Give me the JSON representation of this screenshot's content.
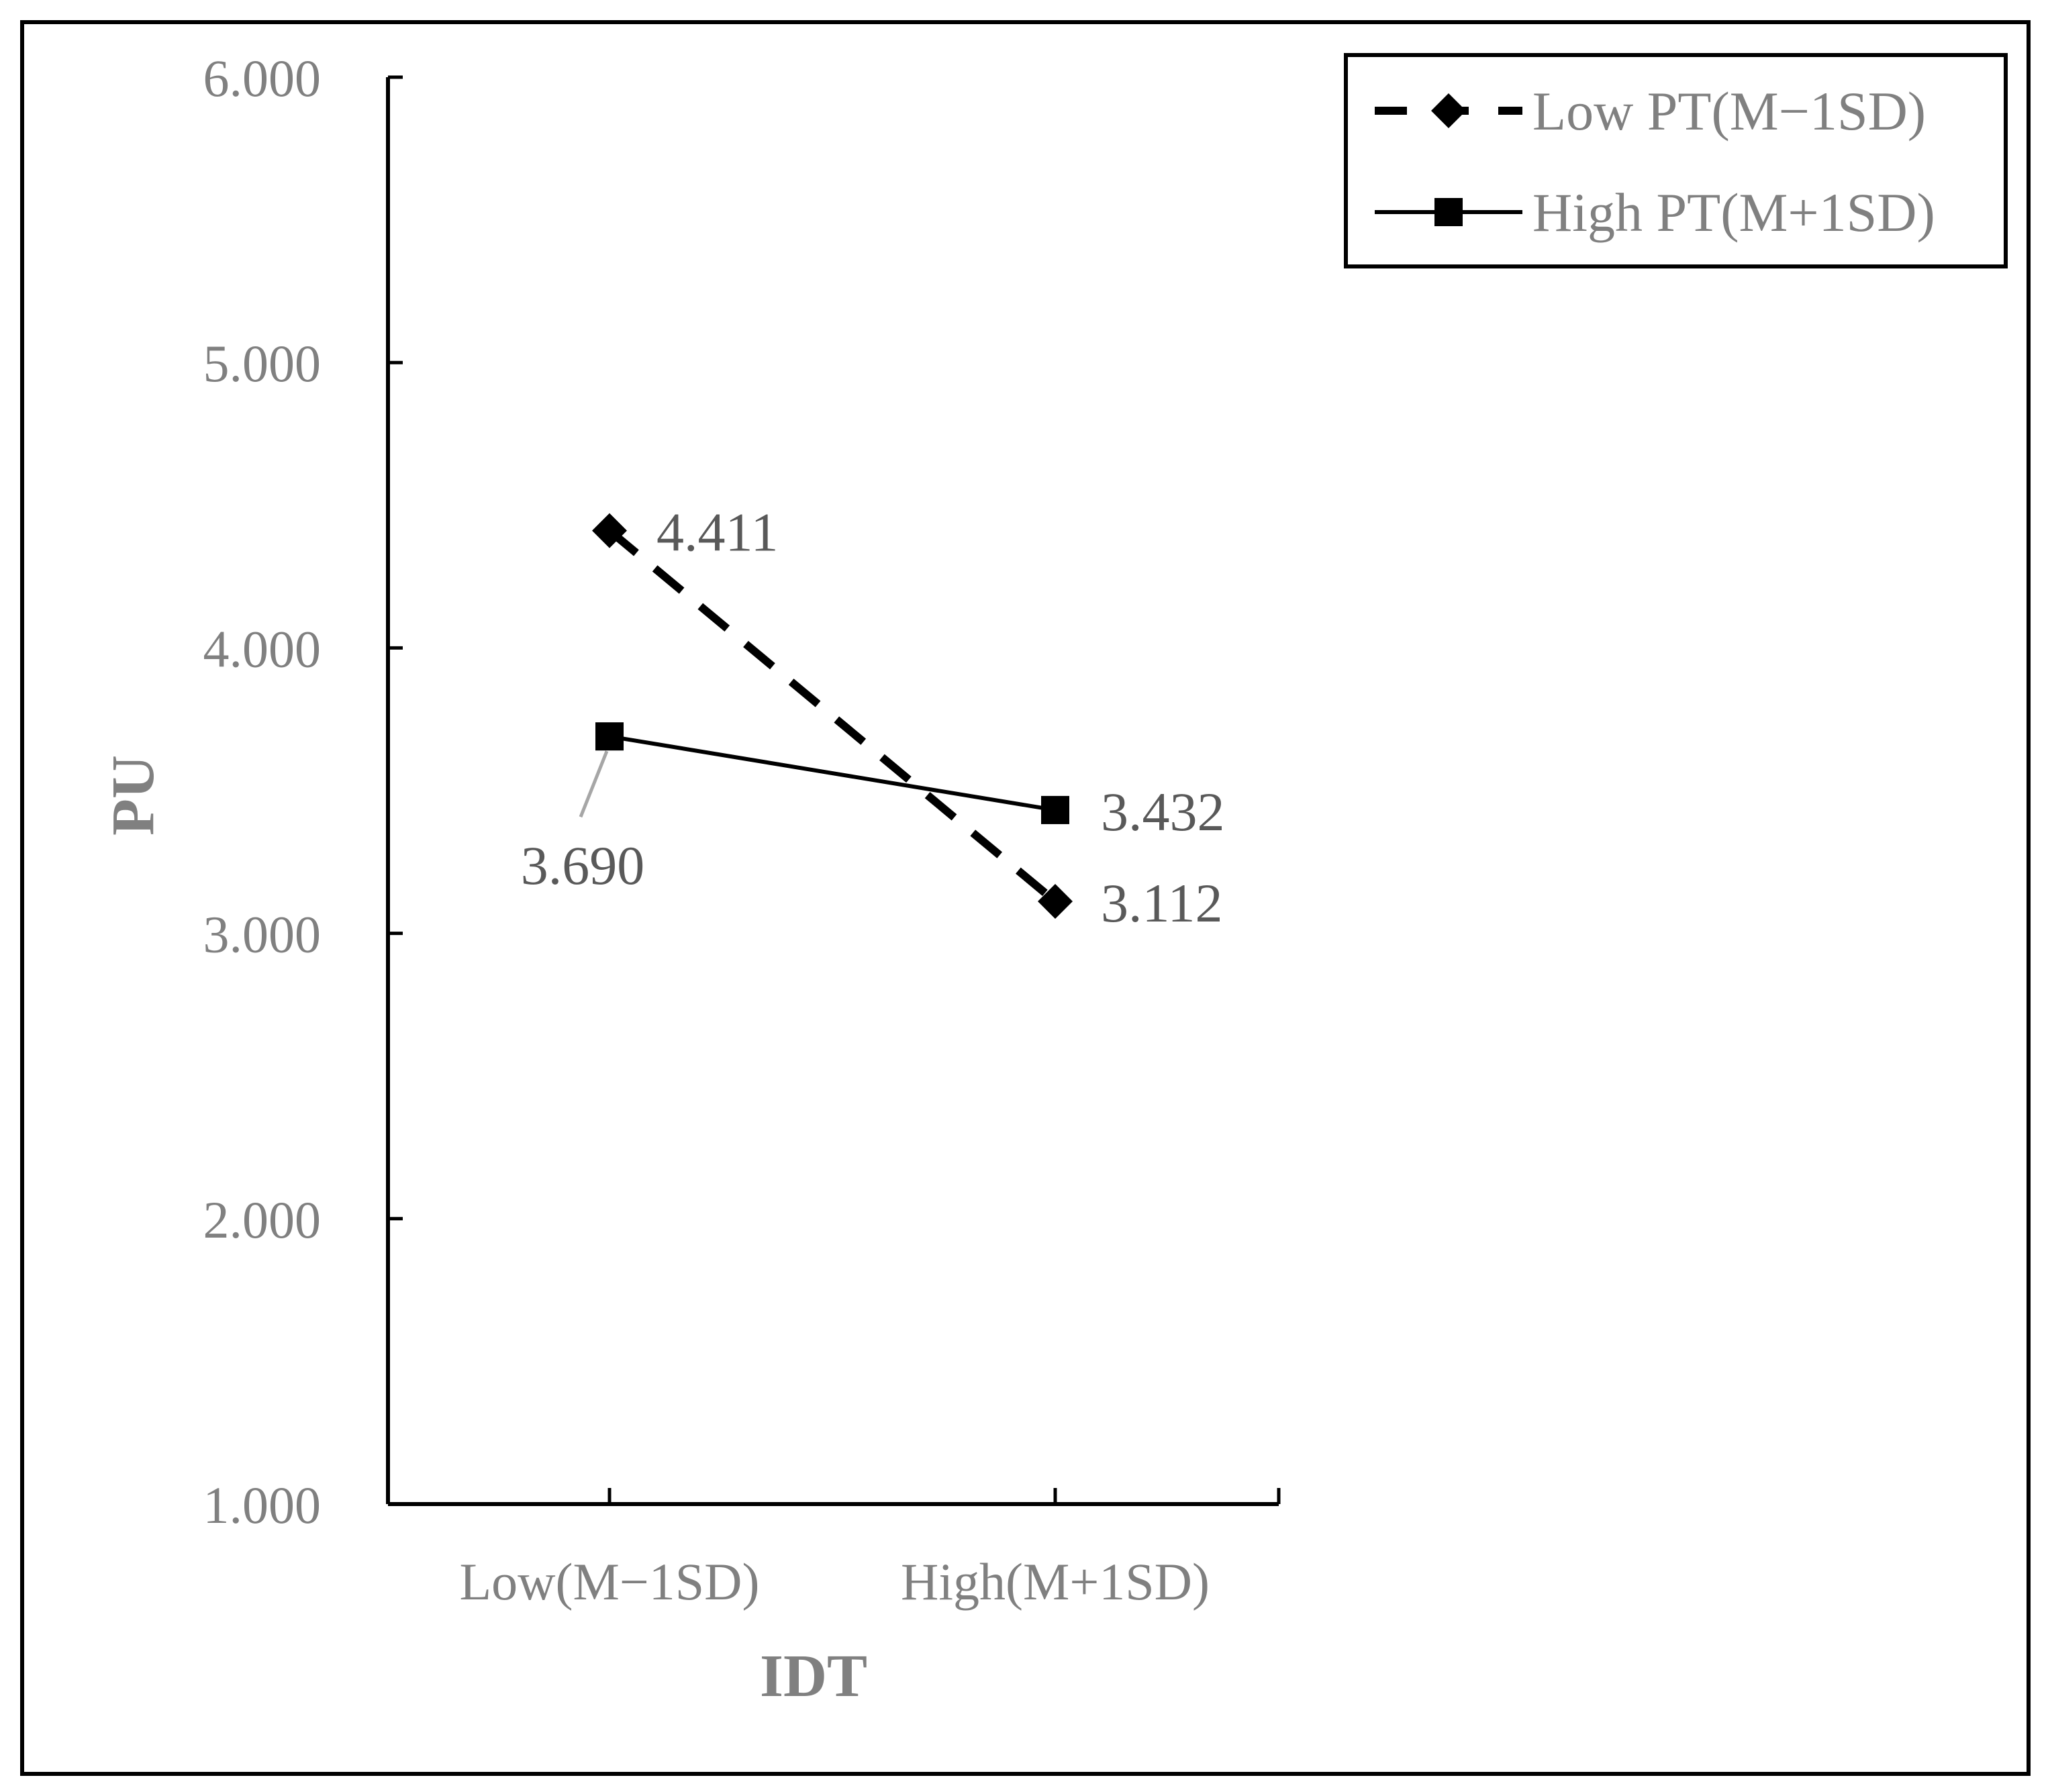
{
  "chart_data": {
    "type": "line",
    "title": "",
    "xlabel": "IDT",
    "ylabel": "PU",
    "categories": [
      "Low(M−1SD)",
      "High(M+1SD)"
    ],
    "ylim": [
      1,
      6
    ],
    "yticks": [
      "1.000",
      "2.000",
      "3.000",
      "4.000",
      "5.000",
      "6.000"
    ],
    "grid": false,
    "legend_position": "top-right",
    "series": [
      {
        "name": "Low PT(M−1SD)",
        "values": [
          4.411,
          3.112
        ],
        "labels": [
          "4.411",
          "3.112"
        ],
        "line_style": "dashed",
        "marker": "diamond",
        "color": "#000000"
      },
      {
        "name": "High PT(M+1SD)",
        "values": [
          3.69,
          3.432
        ],
        "labels": [
          "3.690",
          "3.432"
        ],
        "line_style": "solid",
        "marker": "square",
        "color": "#000000"
      }
    ]
  }
}
